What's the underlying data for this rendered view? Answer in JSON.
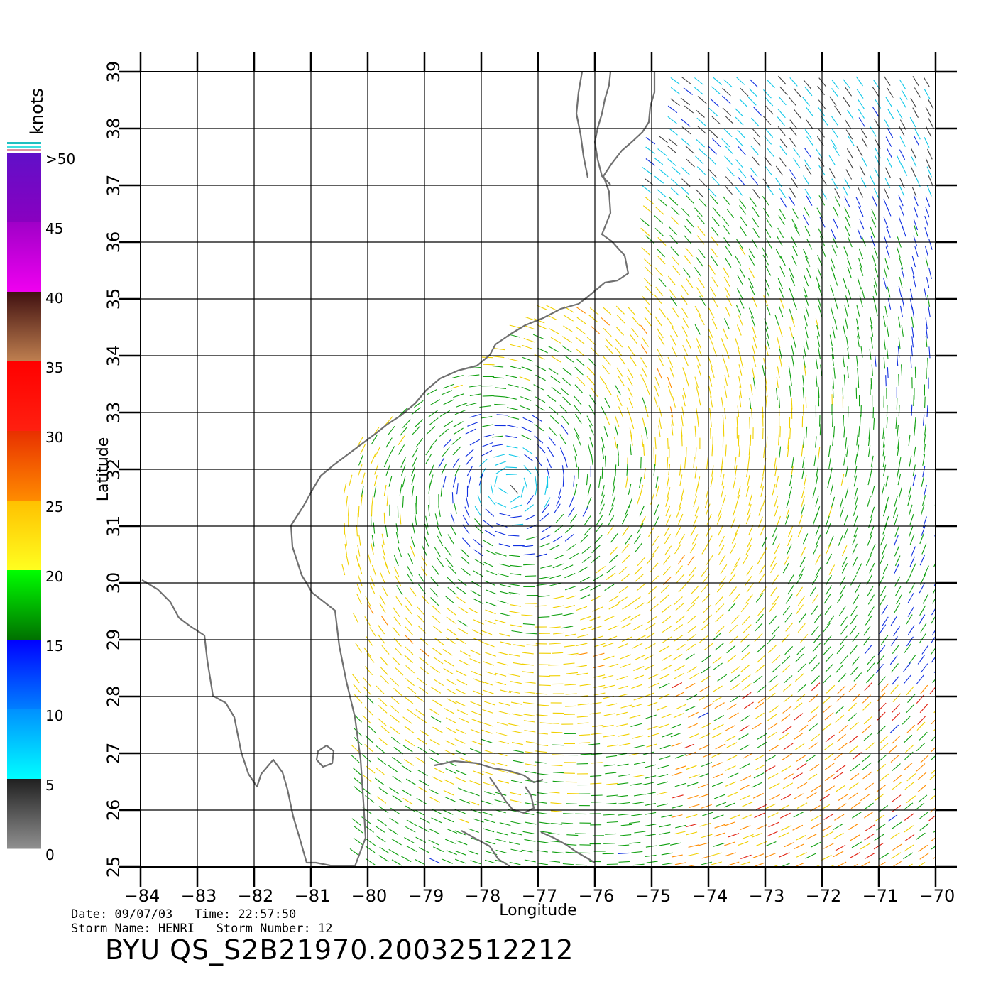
{
  "map": {
    "xlabel": "Longitude",
    "ylabel": "Latitude",
    "lon_range": [
      -84,
      -70
    ],
    "lat_range": [
      25,
      39
    ],
    "lon_ticks": [
      -84,
      -83,
      -82,
      -81,
      -80,
      -79,
      -78,
      -77,
      -76,
      -75,
      -74,
      -73,
      -72,
      -71,
      -70
    ],
    "lat_ticks": [
      25,
      26,
      27,
      28,
      29,
      30,
      31,
      32,
      33,
      34,
      35,
      36,
      37,
      38,
      39
    ],
    "storm_center_lon_lat": [
      -77.5,
      31.7
    ],
    "coastline_color": "#707070",
    "land_color": "#ffffff"
  },
  "colorbar": {
    "unit_label": "knots",
    "labels": [
      ">50",
      "45",
      "40",
      "35",
      "30",
      "25",
      "20",
      "15",
      "10",
      "5",
      "0"
    ],
    "bands": [
      {
        "from": 45,
        "to": 50,
        "top": "#6010c8",
        "bottom": "#8a00c0"
      },
      {
        "from": 40,
        "to": 45,
        "top": "#a000c8",
        "bottom": "#f000f0"
      },
      {
        "from": 35,
        "to": 40,
        "top": "#401010",
        "bottom": "#c08050"
      },
      {
        "from": 30,
        "to": 35,
        "top": "#ff0000",
        "bottom": "#ff2010"
      },
      {
        "from": 25,
        "to": 30,
        "top": "#e83000",
        "bottom": "#ff8c00"
      },
      {
        "from": 20,
        "to": 25,
        "top": "#ffc000",
        "bottom": "#ffff20"
      },
      {
        "from": 15,
        "to": 20,
        "top": "#00ff00",
        "bottom": "#007000"
      },
      {
        "from": 10,
        "to": 15,
        "top": "#0000ff",
        "bottom": "#0080ff"
      },
      {
        "from": 5,
        "to": 10,
        "top": "#0090ff",
        "bottom": "#00ffff"
      },
      {
        "from": 0,
        "to": 5,
        "top": "#202020",
        "bottom": "#909090"
      }
    ]
  },
  "info": {
    "date_line": "Date: 09/07/03   Time: 22:57:50",
    "storm_line": "Storm Name: HENRI   Storm Number: 12",
    "file_id": "BYU QS_S2B21970.20032512212"
  }
}
